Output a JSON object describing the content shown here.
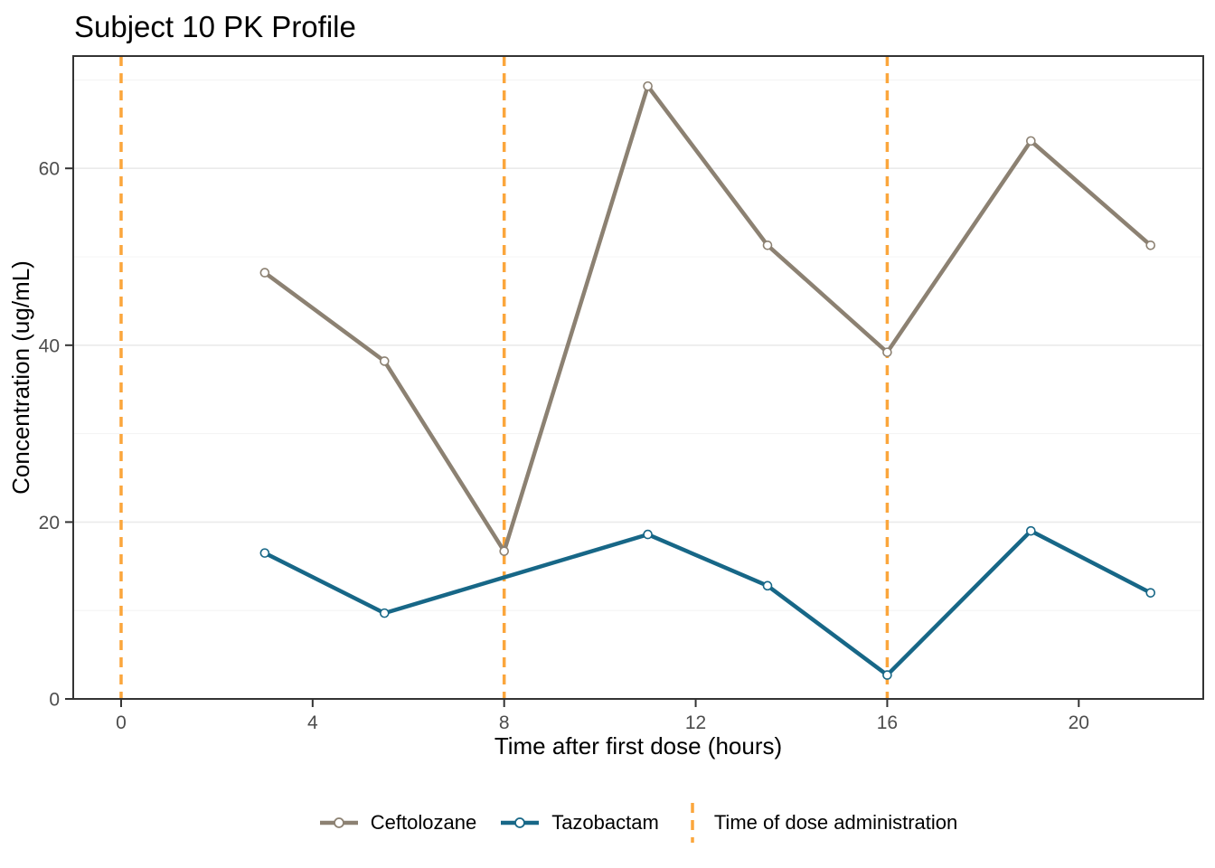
{
  "chart_data": {
    "type": "line",
    "title": "Subject 10 PK Profile",
    "xlabel": "Time after first dose (hours)",
    "ylabel": "Concentration (ug/mL)",
    "xlim": [
      -1,
      22.6
    ],
    "ylim": [
      0,
      72.7
    ],
    "x_ticks": [
      0,
      4,
      8,
      12,
      16,
      20
    ],
    "y_ticks": [
      0,
      20,
      40,
      60
    ],
    "y_minor_gridlines": [
      10,
      30,
      50,
      70
    ],
    "grid": "horizontal-only",
    "legend_position": "bottom",
    "series": [
      {
        "name": "Ceftolozane",
        "color": "#8C8172",
        "marker": "open-circle",
        "x": [
          3,
          5.5,
          8,
          11,
          13.5,
          16,
          19,
          21.5
        ],
        "y": [
          48.2,
          38.2,
          16.7,
          69.3,
          51.3,
          39.2,
          63.1,
          51.3
        ]
      },
      {
        "name": "Tazobactam",
        "color": "#176787",
        "marker": "open-circle",
        "x": [
          3,
          5.5,
          11,
          13.5,
          16,
          19,
          21.5
        ],
        "y": [
          16.5,
          9.7,
          18.6,
          12.8,
          2.7,
          19.0,
          12.0
        ]
      }
    ],
    "dose_lines": {
      "label": "Time of dose administration",
      "color": "#FBA63C",
      "style": "dashed",
      "times": [
        0,
        8,
        16
      ]
    }
  },
  "colors": {
    "tick_label": "#4D4D4D",
    "grid_major": "#EBEBEB",
    "grid_minor": "#F4F4F4",
    "panel_border": "#333333",
    "axis_text": "#000000"
  }
}
